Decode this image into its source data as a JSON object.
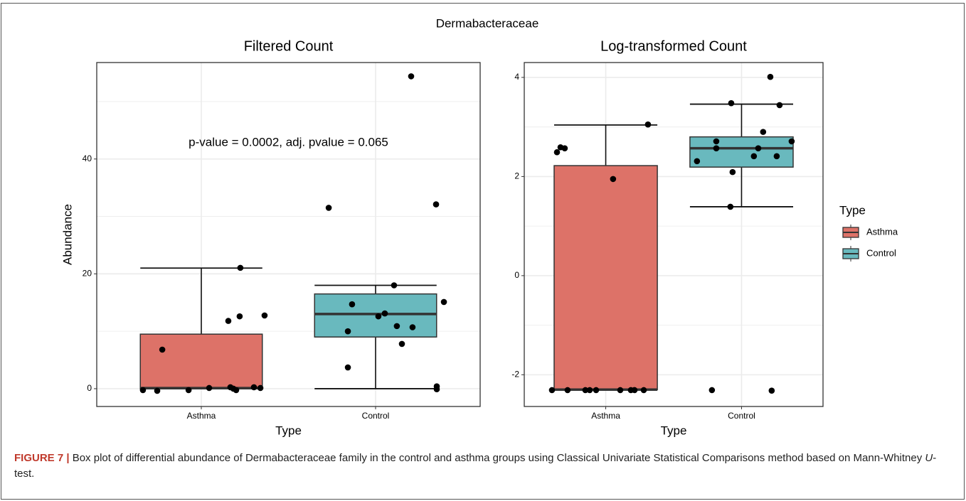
{
  "title": "Dermabacteraceae",
  "legend": {
    "title": "Type"
  },
  "caption": {
    "label": "FIGURE 7 |",
    "text_parts": [
      " Box plot of differential abundance of Dermabacteraceae family in the control and asthma groups using Classical Univariate Statistical Comparisons method based on Mann-Whitney ",
      "U",
      "-test."
    ]
  },
  "chart_data": [
    {
      "type": "box",
      "title": "Filtered Count",
      "xlabel": "Type",
      "ylabel": "Abundance",
      "categories": [
        "Asthma",
        "Control"
      ],
      "xlim": [
        0.4,
        2.6
      ],
      "box_width": 0.7,
      "ylim": [
        -3.1,
        56.8
      ],
      "yticks": [
        0,
        20,
        40
      ],
      "minor_yticks": [
        10,
        30,
        50
      ],
      "grid": true,
      "annotation": {
        "text": "p-value = 0.0002, adj. pvalue = 0.065",
        "x": 1.5,
        "y": 42.8
      },
      "series": [
        {
          "name": "Asthma",
          "color": "#dd7268",
          "box": {
            "whisker_low": 0,
            "q1": 0,
            "median": 0.1,
            "q3": 9.5,
            "whisker_high": 21
          },
          "points": {
            "x": [
              0.665,
              0.747,
              0.776,
              0.927,
              1.045,
              1.167,
              1.184,
              1.2,
              1.224,
              1.22,
              1.155,
              1.302,
              1.339,
              1.363
            ],
            "y": [
              -0.25,
              -0.37,
              6.8,
              -0.25,
              0.12,
              0.25,
              0,
              -0.25,
              21.05,
              12.6,
              11.8,
              0.25,
              0.12,
              12.75
            ]
          }
        },
        {
          "name": "Control",
          "color": "#69b9be",
          "box": {
            "whisker_low": 0,
            "q1": 9,
            "median": 13,
            "q3": 16.5,
            "whisker_high": 18
          },
          "points": {
            "x": [
              2.204,
              1.731,
              2.347,
              2.106,
              2.392,
              1.865,
              2.053,
              2.016,
              1.841,
              2.122,
              2.212,
              2.151,
              1.841,
              2.351,
              2.351
            ],
            "y": [
              54.4,
              31.5,
              32.1,
              18.0,
              15.1,
              14.7,
              13.1,
              12.6,
              10.0,
              10.9,
              10.7,
              7.8,
              3.7,
              0.4,
              -0.1
            ]
          }
        }
      ]
    },
    {
      "type": "box",
      "title": "Log-transformed Count",
      "xlabel": "Type",
      "categories": [
        "Asthma",
        "Control"
      ],
      "xlim": [
        0.4,
        2.6
      ],
      "box_width": 0.76,
      "ylim": [
        -2.64,
        4.3
      ],
      "yticks": [
        -2,
        0,
        2,
        4
      ],
      "minor_yticks": [
        -1,
        1,
        3
      ],
      "grid": true,
      "series": [
        {
          "name": "Asthma",
          "color": "#dd7268",
          "box": {
            "whisker_low": -2.3,
            "q1": -2.3,
            "median": -2.3,
            "q3": 2.22,
            "whisker_high": 3.04
          },
          "points": {
            "x": [
              0.604,
              0.719,
              0.85,
              0.882,
              0.929,
              1.107,
              1.185,
              1.212,
              1.28,
              0.641,
              0.667,
              0.698,
              1.054,
              1.311
            ],
            "y": [
              -2.31,
              -2.31,
              -2.31,
              -2.31,
              -2.31,
              -2.31,
              -2.31,
              -2.31,
              -2.31,
              2.49,
              2.59,
              2.57,
              1.95,
              3.05
            ]
          }
        },
        {
          "name": "Control",
          "color": "#69b9be",
          "box": {
            "whisker_low": 1.39,
            "q1": 2.19,
            "median": 2.57,
            "q3": 2.8,
            "whisker_high": 3.46
          },
          "points": {
            "x": [
              2.212,
              1.924,
              2.28,
              2.159,
              2.369,
              1.814,
              2.123,
              1.814,
              1.672,
              2.091,
              2.259,
              1.934,
              1.918,
              1.782,
              2.222
            ],
            "y": [
              4.01,
              3.48,
              3.44,
              2.9,
              2.71,
              2.71,
              2.57,
              2.57,
              2.31,
              2.41,
              2.41,
              2.09,
              1.39,
              -2.31,
              -2.32
            ]
          }
        }
      ]
    }
  ]
}
